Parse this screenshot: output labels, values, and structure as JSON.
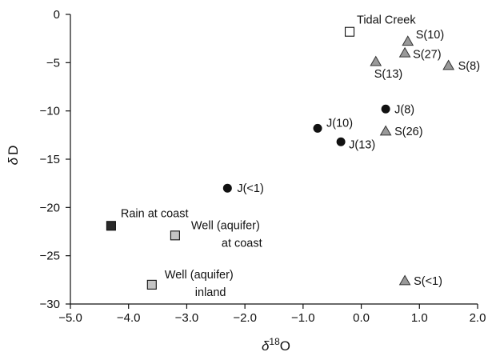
{
  "chart_data": {
    "type": "scatter",
    "xlim": [
      -5.0,
      2.0
    ],
    "ylim": [
      -30,
      0
    ],
    "x_ticks": [
      -5.0,
      -4.0,
      -3.0,
      -2.0,
      -1.0,
      0.0,
      1.0,
      2.0
    ],
    "x_tick_labels": [
      "−5.0",
      "−4.0",
      "−3.0",
      "−2.0",
      "−1.0",
      "0.0",
      "1.0",
      "2.0"
    ],
    "y_ticks": [
      0,
      -5,
      -10,
      -15,
      -20,
      -25,
      -30
    ],
    "y_tick_labels": [
      "0",
      "−5",
      "−10",
      "−15",
      "−20",
      "−25",
      "−30"
    ],
    "xlabel": {
      "delta": "δ",
      "sup": "18",
      "base": "O"
    },
    "ylabel": {
      "delta": "δ",
      "base": "D"
    },
    "grid": false,
    "legend": "none",
    "points": [
      {
        "label": "Tidal Creek",
        "x": -0.2,
        "y": -1.8,
        "marker": "square-open",
        "color": "#ffffff"
      },
      {
        "label": "S(10)",
        "x": 0.8,
        "y": -2.8,
        "marker": "triangle",
        "color": "#999999"
      },
      {
        "label": "S(27)",
        "x": 0.75,
        "y": -4.0,
        "marker": "triangle",
        "color": "#999999"
      },
      {
        "label": "S(13)",
        "x": 0.25,
        "y": -4.9,
        "marker": "triangle",
        "color": "#999999"
      },
      {
        "label": "S(8)",
        "x": 1.5,
        "y": -5.3,
        "marker": "triangle",
        "color": "#999999"
      },
      {
        "label": "J(8)",
        "x": 0.42,
        "y": -9.8,
        "marker": "circle",
        "color": "#111111"
      },
      {
        "label": "J(10)",
        "x": -0.75,
        "y": -11.8,
        "marker": "circle",
        "color": "#111111"
      },
      {
        "label": "S(26)",
        "x": 0.42,
        "y": -12.1,
        "marker": "triangle",
        "color": "#999999"
      },
      {
        "label": "J(13)",
        "x": -0.35,
        "y": -13.2,
        "marker": "circle",
        "color": "#111111"
      },
      {
        "label": "J(<1)",
        "x": -2.3,
        "y": -18.0,
        "marker": "circle",
        "color": "#111111"
      },
      {
        "label": "Rain at coast",
        "x": -4.3,
        "y": -21.9,
        "marker": "square",
        "color": "#2a2a2a"
      },
      {
        "label": "Well (aquifer)\nat coast",
        "x": -3.2,
        "y": -22.9,
        "marker": "square",
        "color": "#c4c4c4"
      },
      {
        "label": "Well (aquifer)\ninland",
        "x": -3.6,
        "y": -28.0,
        "marker": "square",
        "color": "#c4c4c4"
      },
      {
        "label": "S(<1)",
        "x": 0.75,
        "y": -27.6,
        "marker": "triangle",
        "color": "#999999"
      }
    ]
  }
}
